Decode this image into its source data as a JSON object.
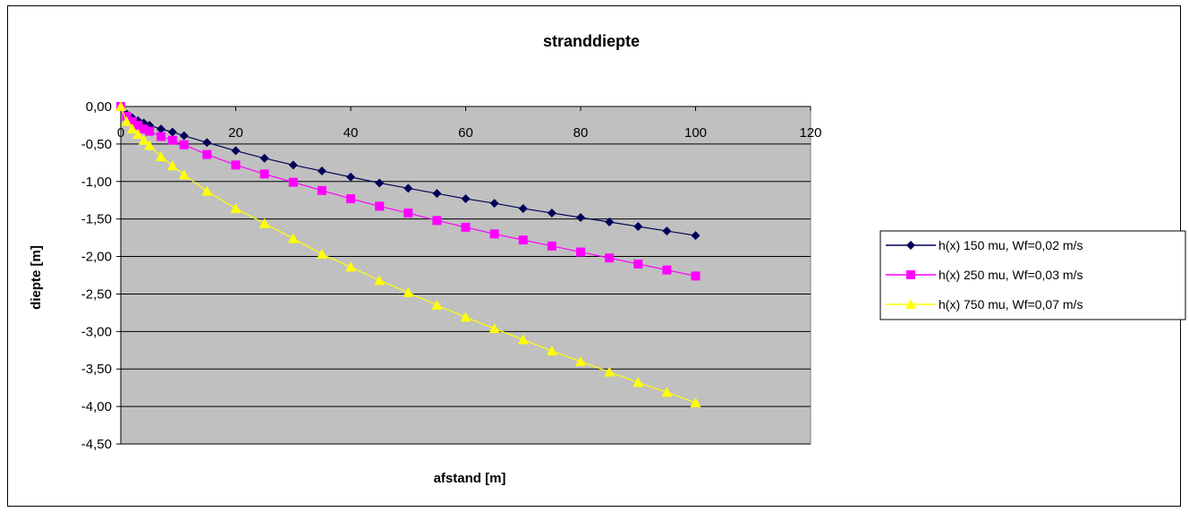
{
  "chart_data": {
    "type": "line",
    "title": "stranddiepte",
    "xlabel": "afstand [m]",
    "ylabel": "diepte [m]",
    "xlim": [
      0,
      120
    ],
    "ylim": [
      -4.5,
      0
    ],
    "x_ticks": [
      0,
      20,
      40,
      60,
      80,
      100,
      120
    ],
    "y_ticks": [
      0,
      -0.5,
      -1,
      -1.5,
      -2,
      -2.5,
      -3,
      -3.5,
      -4,
      -4.5
    ],
    "y_tick_labels": [
      "0,00",
      "-0,50",
      "-1,00",
      "-1,50",
      "-2,00",
      "-2,50",
      "-3,00",
      "-3,50",
      "-4,00",
      "-4,50"
    ],
    "x_tick_labels": [
      "0",
      "20",
      "40",
      "60",
      "80",
      "100",
      "120"
    ],
    "grid": "horizontal",
    "plot_background": "#c0c0c0",
    "legend_position": "right",
    "x": [
      0,
      1,
      2,
      3,
      4,
      5,
      7,
      9,
      11,
      15,
      20,
      25,
      30,
      35,
      40,
      45,
      50,
      55,
      60,
      65,
      70,
      75,
      80,
      85,
      90,
      95,
      100
    ],
    "series": [
      {
        "name": "h(x) 150 mu, Wf=0,02 m/s",
        "color": "#00005a",
        "marker": "diamond",
        "values": [
          0,
          -0.1,
          -0.15,
          -0.19,
          -0.22,
          -0.25,
          -0.3,
          -0.34,
          -0.39,
          -0.48,
          -0.59,
          -0.69,
          -0.78,
          -0.86,
          -0.94,
          -1.02,
          -1.09,
          -1.16,
          -1.23,
          -1.29,
          -1.36,
          -1.42,
          -1.48,
          -1.54,
          -1.6,
          -1.66,
          -1.72
        ]
      },
      {
        "name": "h(x) 250 mu, Wf=0,03 m/s",
        "color": "#ff00ff",
        "marker": "square",
        "values": [
          0,
          -0.13,
          -0.2,
          -0.25,
          -0.3,
          -0.33,
          -0.4,
          -0.45,
          -0.51,
          -0.64,
          -0.78,
          -0.9,
          -1.01,
          -1.12,
          -1.23,
          -1.33,
          -1.42,
          -1.52,
          -1.61,
          -1.7,
          -1.78,
          -1.86,
          -1.94,
          -2.02,
          -2.1,
          -2.18,
          -2.26
        ]
      },
      {
        "name": "h(x) 750 mu, Wf=0,07 m/s",
        "color": "#ffff00",
        "marker": "triangle",
        "values": [
          0,
          -0.2,
          -0.3,
          -0.37,
          -0.45,
          -0.52,
          -0.67,
          -0.79,
          -0.91,
          -1.13,
          -1.36,
          -1.56,
          -1.76,
          -1.97,
          -2.14,
          -2.32,
          -2.48,
          -2.65,
          -2.81,
          -2.96,
          -3.11,
          -3.26,
          -3.4,
          -3.54,
          -3.68,
          -3.81,
          -3.95
        ]
      }
    ]
  }
}
